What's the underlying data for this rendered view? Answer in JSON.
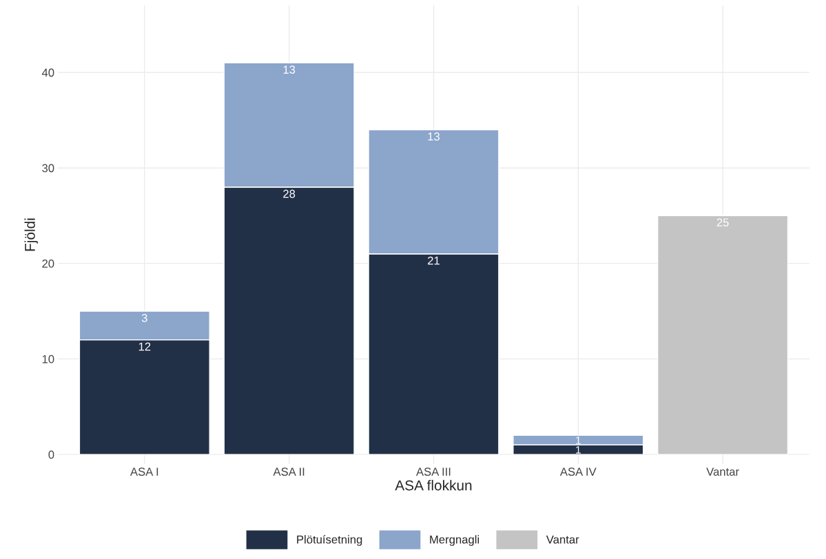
{
  "chart_data": {
    "type": "bar",
    "stacked": true,
    "xlabel": "ASA flokkun",
    "ylabel": "Fjöldi",
    "categories": [
      "ASA I",
      "ASA II",
      "ASA III",
      "ASA IV",
      "Vantar"
    ],
    "series": [
      {
        "name": "Plötuísetning",
        "color": "#223047",
        "values": [
          12,
          28,
          21,
          1,
          null
        ]
      },
      {
        "name": "Mergnagli",
        "color": "#8ba5cb",
        "values": [
          3,
          13,
          13,
          1,
          null
        ]
      },
      {
        "name": "Vantar",
        "color": "#c4c4c4",
        "values": [
          null,
          null,
          null,
          null,
          25
        ]
      }
    ],
    "ylim": [
      -1,
      47
    ],
    "yticks": [
      0,
      10,
      20,
      30,
      40
    ],
    "grid": true,
    "legend": "bottom",
    "data_labels": true
  }
}
